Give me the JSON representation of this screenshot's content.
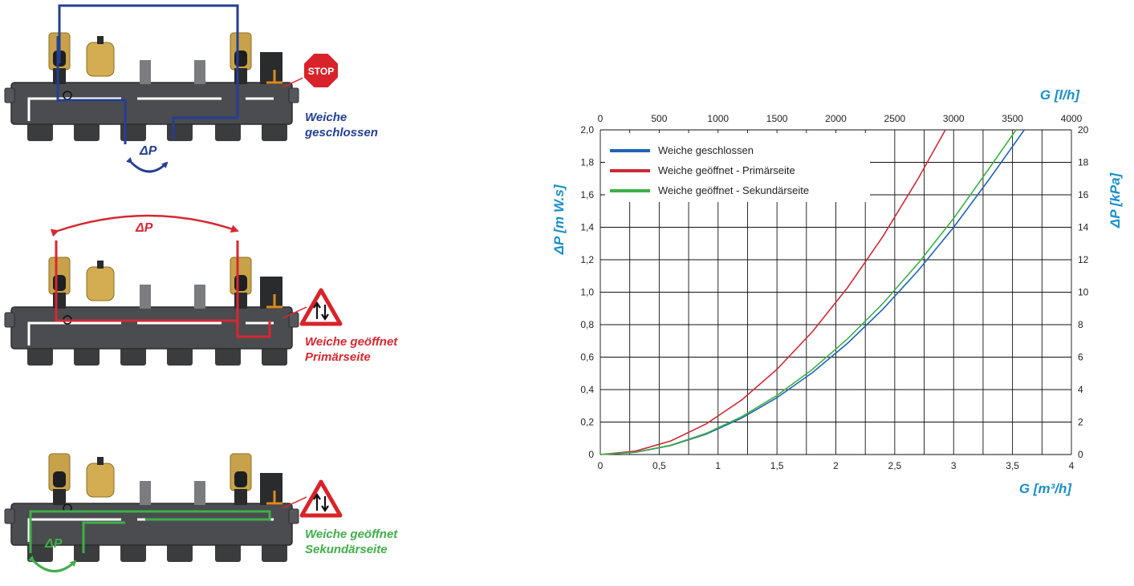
{
  "colors": {
    "blue_curve": "#1f63b5",
    "red_curve": "#cc2a36",
    "green_curve": "#3fae49",
    "axis_title": "#1a8fc9",
    "diagram_blue": "#243f93",
    "diagram_red": "#d62832",
    "diagram_green": "#3fae49",
    "body_grey": "#4a4c4f",
    "brass": "#c8a24a"
  },
  "diagrams": [
    {
      "caption_line1": "Weiche",
      "caption_line2": "geschlossen",
      "dp_label": "ΔP",
      "sign_icon": "stop-sign-icon",
      "sign_text": "STOP"
    },
    {
      "caption_line1": "Weiche geöffnet",
      "caption_line2": "Primärseite",
      "dp_label": "ΔP",
      "sign_icon": "two-way-traffic-sign-icon"
    },
    {
      "caption_line1": "Weiche geöffnet",
      "caption_line2": "Sekundärseite",
      "dp_label": "ΔP",
      "sign_icon": "two-way-traffic-sign-icon"
    }
  ],
  "chart_data": {
    "type": "line",
    "xlabel_bottom": "G [m³/h]",
    "xlabel_top": "G [l/h]",
    "ylabel_left": "ΔP [m W.s]",
    "ylabel_right": "ΔP [kPa]",
    "xlim": [
      0,
      4
    ],
    "ylim": [
      0,
      2
    ],
    "grid": true,
    "legend_position": "top-left",
    "x_ticks_bottom": [
      "0",
      "0,5",
      "1",
      "1,5",
      "2",
      "2,5",
      "3",
      "3,5",
      "4"
    ],
    "x_ticks_top": [
      "0",
      "500",
      "1000",
      "1500",
      "2000",
      "2500",
      "3000",
      "3500",
      "4000"
    ],
    "y_ticks_left": [
      "0",
      "0,2",
      "0,4",
      "0,6",
      "0,8",
      "1,0",
      "1,2",
      "1,4",
      "1,6",
      "1,8",
      "2,0"
    ],
    "y_ticks_right": [
      "0",
      "2",
      "4",
      "6",
      "8",
      "10",
      "12",
      "14",
      "16",
      "18",
      "20"
    ],
    "series": [
      {
        "name": "Weiche geschlossen",
        "color": "#1f63b5",
        "x": [
          0,
          0.3,
          0.6,
          0.9,
          1.2,
          1.5,
          1.8,
          2.1,
          2.4,
          2.7,
          3.0,
          3.3,
          3.6
        ],
        "y": [
          0,
          0.014,
          0.056,
          0.126,
          0.224,
          0.35,
          0.504,
          0.686,
          0.896,
          1.134,
          1.4,
          1.694,
          2.0
        ]
      },
      {
        "name": "Weiche geöffnet - Primärseite",
        "color": "#cc2a36",
        "x": [
          0,
          0.3,
          0.6,
          0.9,
          1.2,
          1.5,
          1.8,
          2.1,
          2.4,
          2.7,
          2.93
        ],
        "y": [
          0,
          0.021,
          0.084,
          0.189,
          0.336,
          0.525,
          0.756,
          1.029,
          1.344,
          1.701,
          2.0
        ]
      },
      {
        "name": "Weiche geöffnet - Sekundärseite",
        "color": "#3fae49",
        "x": [
          0,
          0.3,
          0.6,
          0.9,
          1.2,
          1.5,
          1.8,
          2.1,
          2.4,
          2.7,
          3.0,
          3.3,
          3.53
        ],
        "y": [
          0,
          0.015,
          0.058,
          0.131,
          0.233,
          0.364,
          0.524,
          0.713,
          0.931,
          1.179,
          1.455,
          1.761,
          2.0
        ]
      }
    ]
  }
}
